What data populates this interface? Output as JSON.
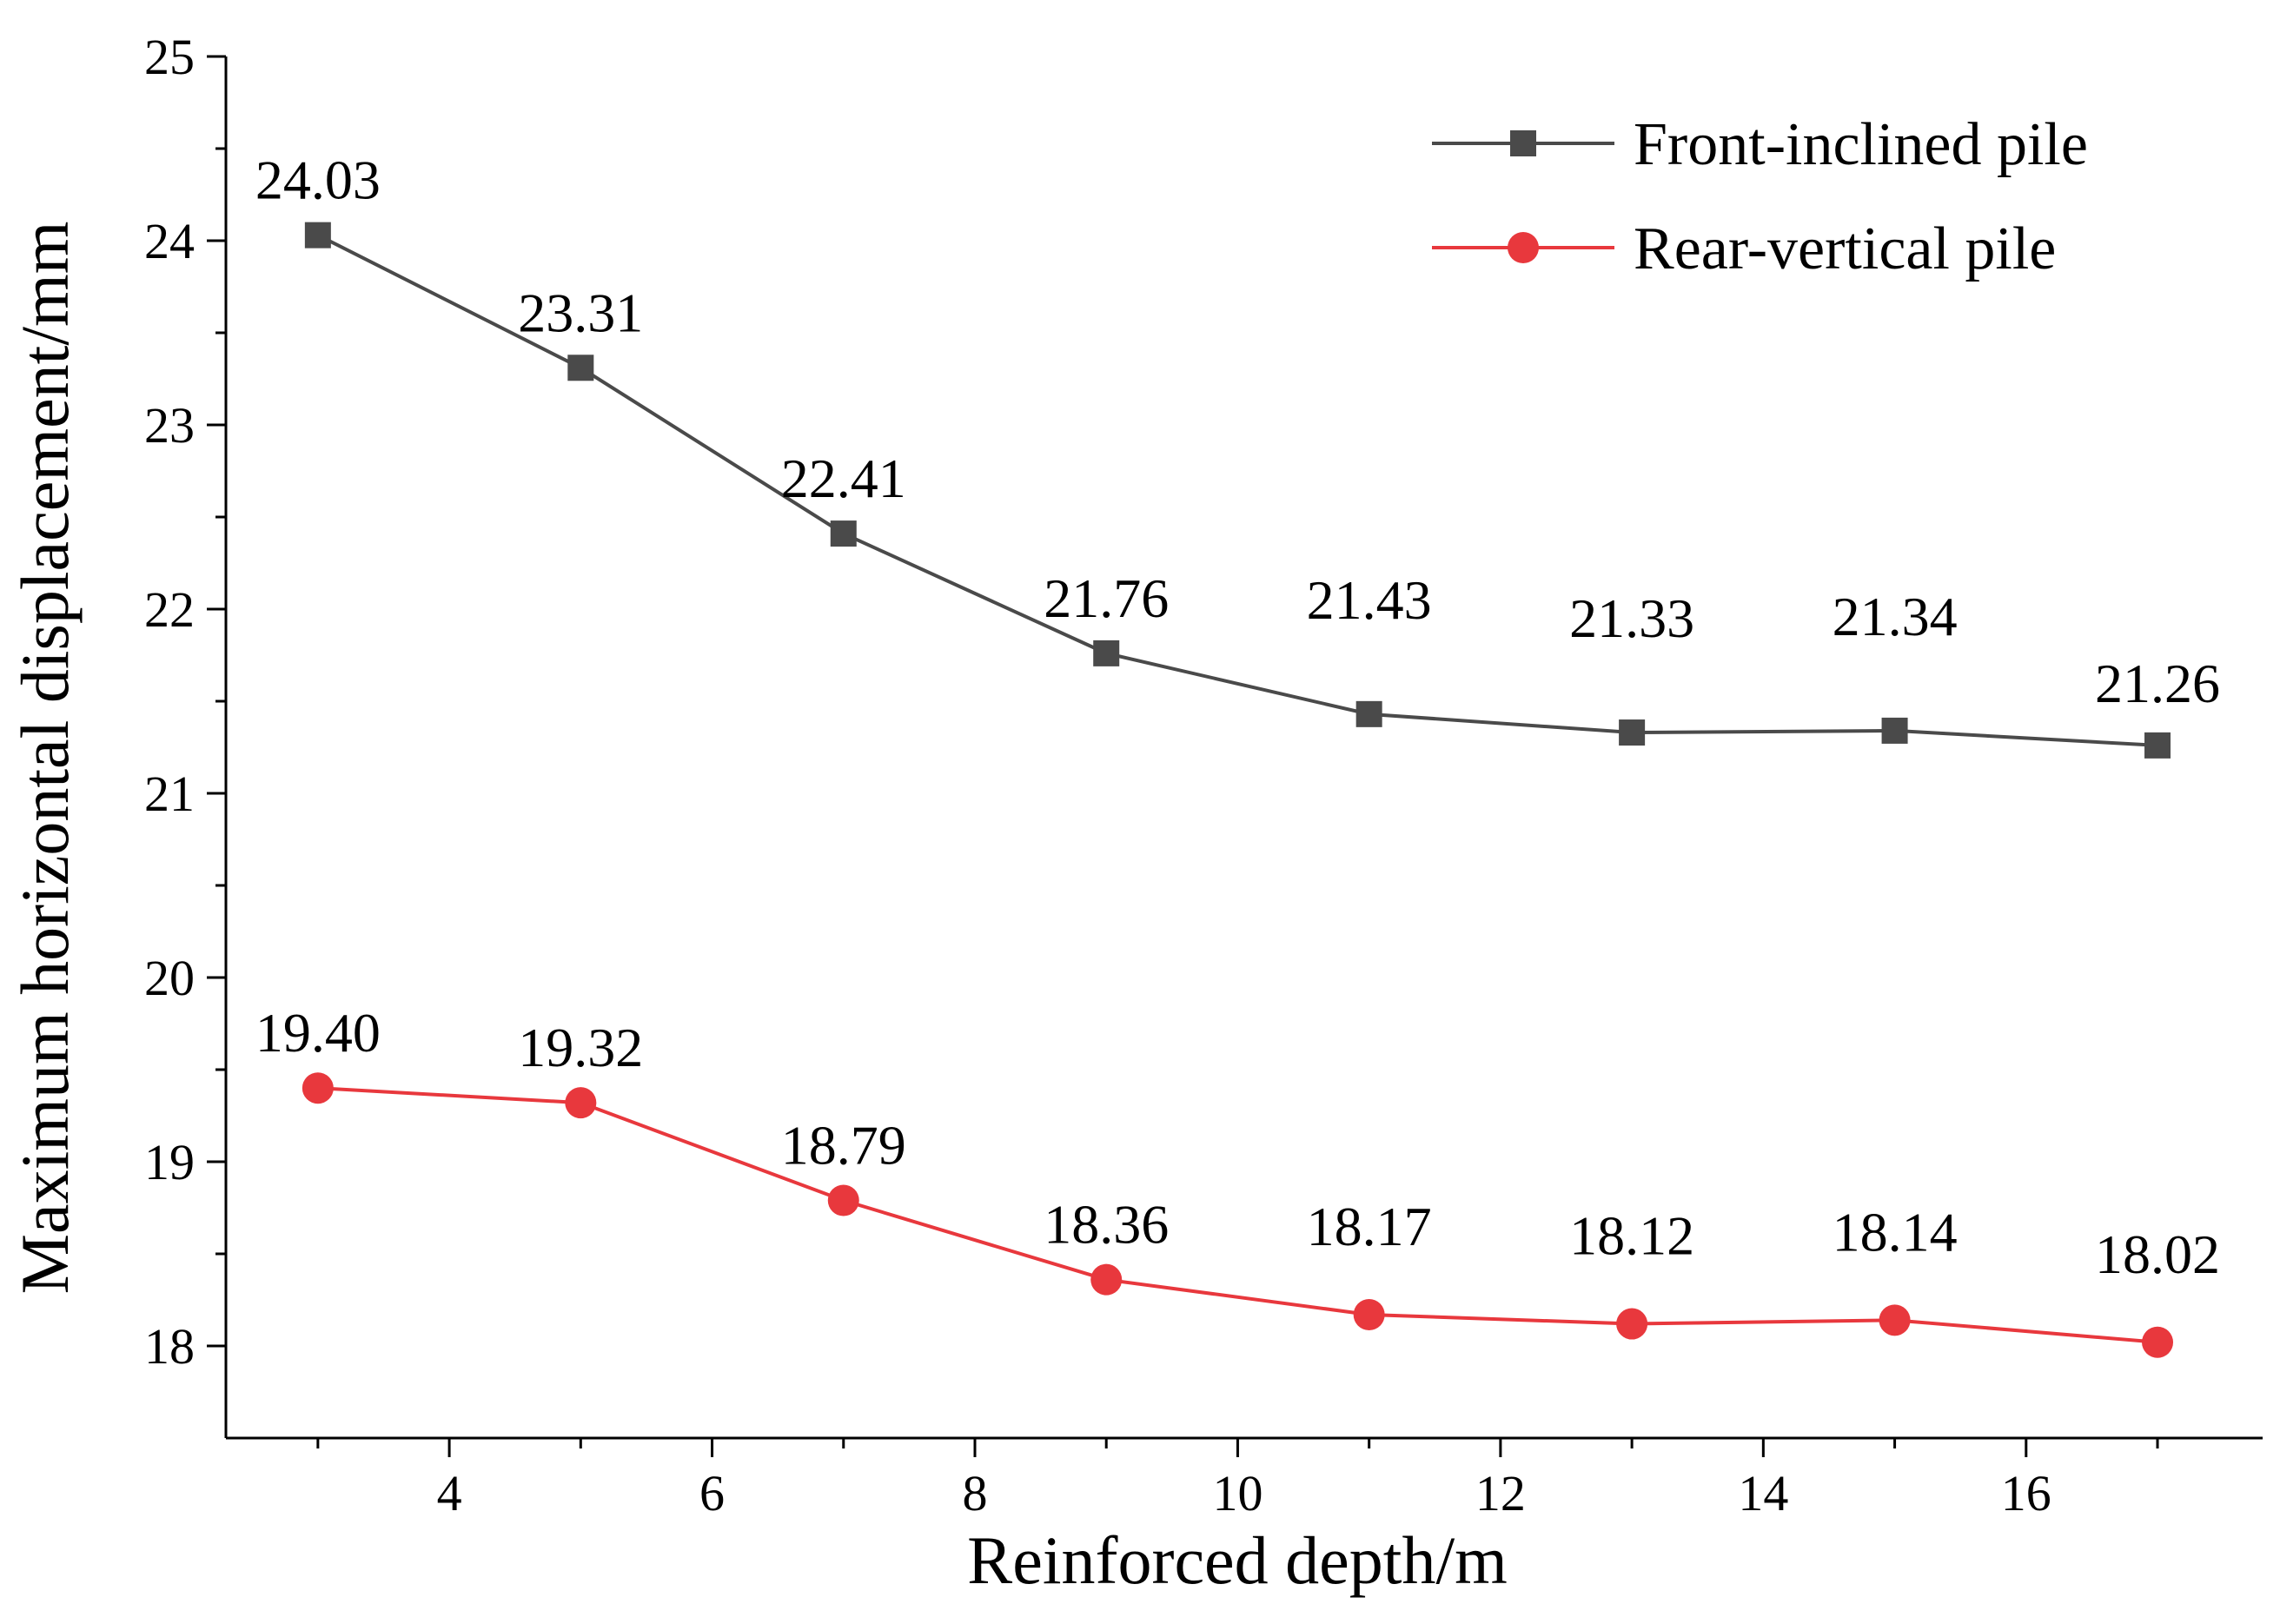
{
  "chart_data": {
    "type": "line",
    "title": "",
    "xlabel": "Reinforced depth/m",
    "ylabel": "Maximum horizontal displacement/mm",
    "xlim": [
      2.3,
      17.8
    ],
    "ylim": [
      17.5,
      25
    ],
    "xticks": [
      4,
      6,
      8,
      10,
      12,
      14,
      16
    ],
    "xtick_labels": [
      "4",
      "6",
      "8",
      "10",
      "12",
      "14",
      "16"
    ],
    "yticks": [
      18,
      19,
      20,
      21,
      22,
      23,
      24,
      25
    ],
    "ytick_labels": [
      "18",
      "19",
      "20",
      "21",
      "22",
      "23",
      "24",
      "25"
    ],
    "grid": false,
    "legend_position": "top-right",
    "x": [
      3,
      5,
      7,
      9,
      11,
      13,
      15,
      17
    ],
    "series": [
      {
        "name": "Front-inclined pile",
        "marker": "square",
        "color": "#4a4a4a",
        "values": [
          24.03,
          23.31,
          22.41,
          21.76,
          21.43,
          21.33,
          21.34,
          21.26
        ],
        "labels": [
          "24.03",
          "23.31",
          "22.41",
          "21.76",
          "21.43",
          "21.33",
          "21.34",
          "21.26"
        ]
      },
      {
        "name": "Rear-vertical pile",
        "marker": "circle",
        "color": "#e8383d",
        "values": [
          19.4,
          19.32,
          18.79,
          18.36,
          18.17,
          18.12,
          18.14,
          18.02
        ],
        "labels": [
          "19.40",
          "19.32",
          "18.79",
          "18.36",
          "18.17",
          "18.12",
          "18.14",
          "18.02"
        ]
      }
    ]
  }
}
